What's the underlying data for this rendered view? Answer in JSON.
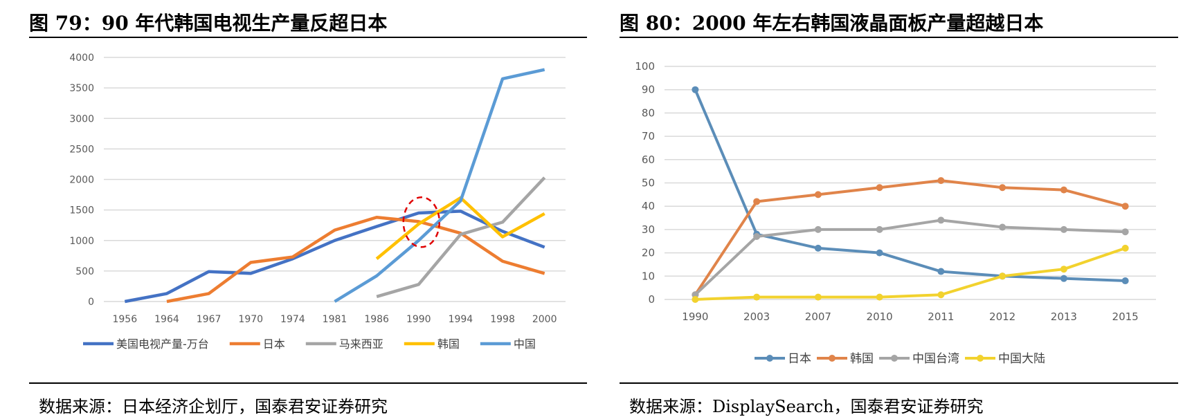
{
  "chart_data": [
    {
      "type": "line",
      "title": "图 79：90 年代韩国电视生产量反超日本",
      "source": "数据来源：日本经济企划厅，国泰君安证券研究",
      "categories": [
        "1956",
        "1964",
        "1967",
        "1970",
        "1974",
        "1981",
        "1986",
        "1990",
        "1994",
        "1998",
        "2000"
      ],
      "ylim": [
        0,
        4000
      ],
      "yticks": [
        0,
        500,
        1000,
        1500,
        2000,
        2500,
        3000,
        3500,
        4000
      ],
      "grid": true,
      "legend": "bottom",
      "annotation": "red dashed circle around 1990 crossover",
      "series": [
        {
          "name": "美国电视产量-万台",
          "color": "#4472C4",
          "values": [
            0,
            130,
            490,
            460,
            700,
            1000,
            1230,
            1450,
            1480,
            1150,
            890
          ]
        },
        {
          "name": "日本",
          "color": "#ED7D31",
          "values": [
            null,
            0,
            130,
            640,
            730,
            1170,
            1380,
            1310,
            1120,
            660,
            460
          ]
        },
        {
          "name": "马来西亚",
          "color": "#A5A5A5",
          "values": [
            null,
            null,
            null,
            null,
            null,
            null,
            80,
            280,
            1100,
            1300,
            2030
          ]
        },
        {
          "name": "韩国",
          "color": "#FFC000",
          "values": [
            null,
            null,
            null,
            null,
            null,
            null,
            700,
            1270,
            1700,
            1060,
            1440
          ]
        },
        {
          "name": "中国",
          "color": "#5B9BD5",
          "values": [
            null,
            null,
            null,
            null,
            null,
            0,
            420,
            1000,
            1650,
            3650,
            3800
          ]
        }
      ]
    },
    {
      "type": "line",
      "title": "图 80：2000 年左右韩国液晶面板产量超越日本",
      "source": "数据来源：DisplaySearch，国泰君安证券研究",
      "categories": [
        "1990",
        "2003",
        "2007",
        "2010",
        "2011",
        "2012",
        "2013",
        "2015"
      ],
      "ylim": [
        0,
        100
      ],
      "yticks": [
        0,
        10,
        20,
        30,
        40,
        50,
        60,
        70,
        80,
        90,
        100
      ],
      "grid": true,
      "legend": "bottom",
      "series": [
        {
          "name": "日本",
          "color": "#5B8DB8",
          "values": [
            90,
            28,
            22,
            20,
            12,
            10,
            9,
            8
          ]
        },
        {
          "name": "韩国",
          "color": "#E0844A",
          "values": [
            2,
            42,
            45,
            48,
            51,
            48,
            47,
            40
          ]
        },
        {
          "name": "中国台湾",
          "color": "#A5A5A5",
          "values": [
            2,
            27,
            30,
            30,
            34,
            31,
            30,
            29
          ]
        },
        {
          "name": "中国大陆",
          "color": "#F2D22E",
          "values": [
            0,
            1,
            1,
            1,
            2,
            10,
            13,
            22
          ]
        }
      ]
    }
  ]
}
